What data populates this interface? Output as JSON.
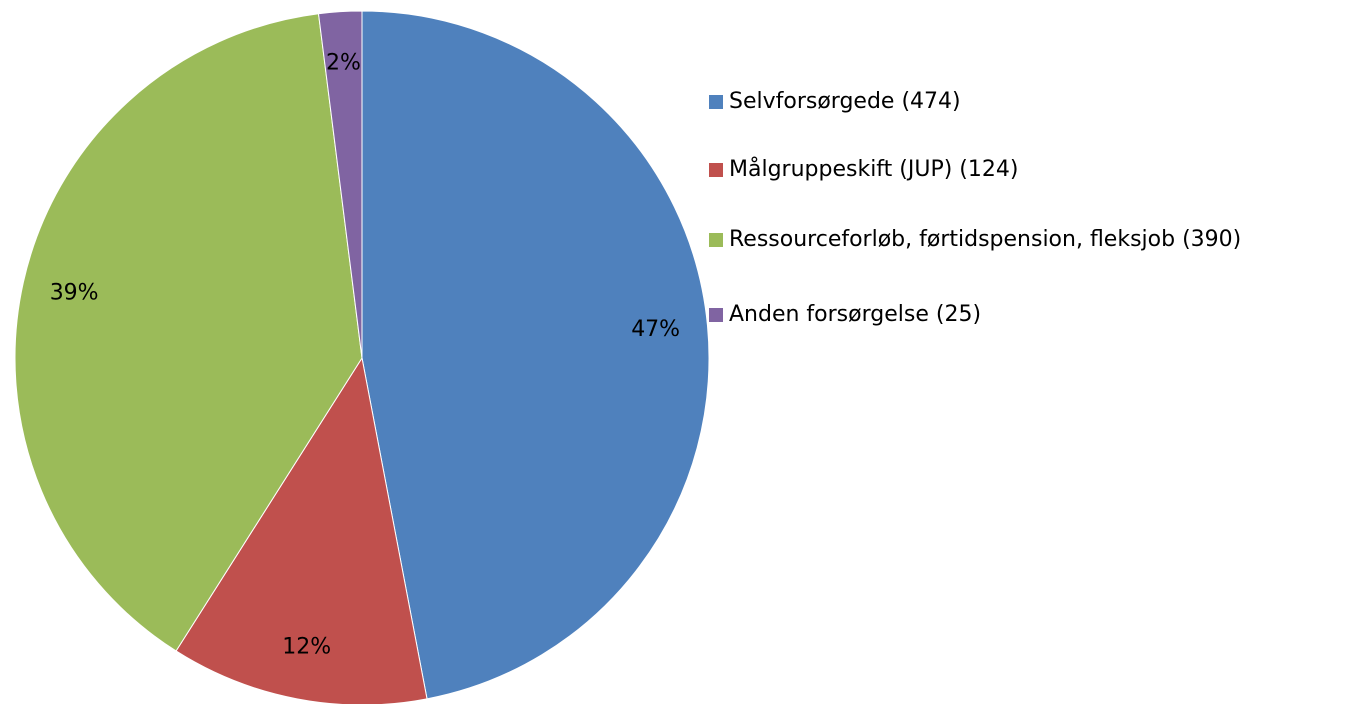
{
  "chart_data": {
    "type": "pie",
    "categories": [
      "Selvforsørgede (474)",
      "Målgruppeskift (JUP) (124)",
      "Ressourceforløb, førtidspension, fleksjob (390)",
      "Anden forsørgelse (25)"
    ],
    "values": [
      47,
      12,
      39,
      2
    ],
    "value_labels": [
      "47%",
      "12%",
      "39%",
      "2%"
    ],
    "colors": [
      "#4f81bd",
      "#c0504d",
      "#9bbb59",
      "#8064a2"
    ],
    "legend": "right"
  }
}
